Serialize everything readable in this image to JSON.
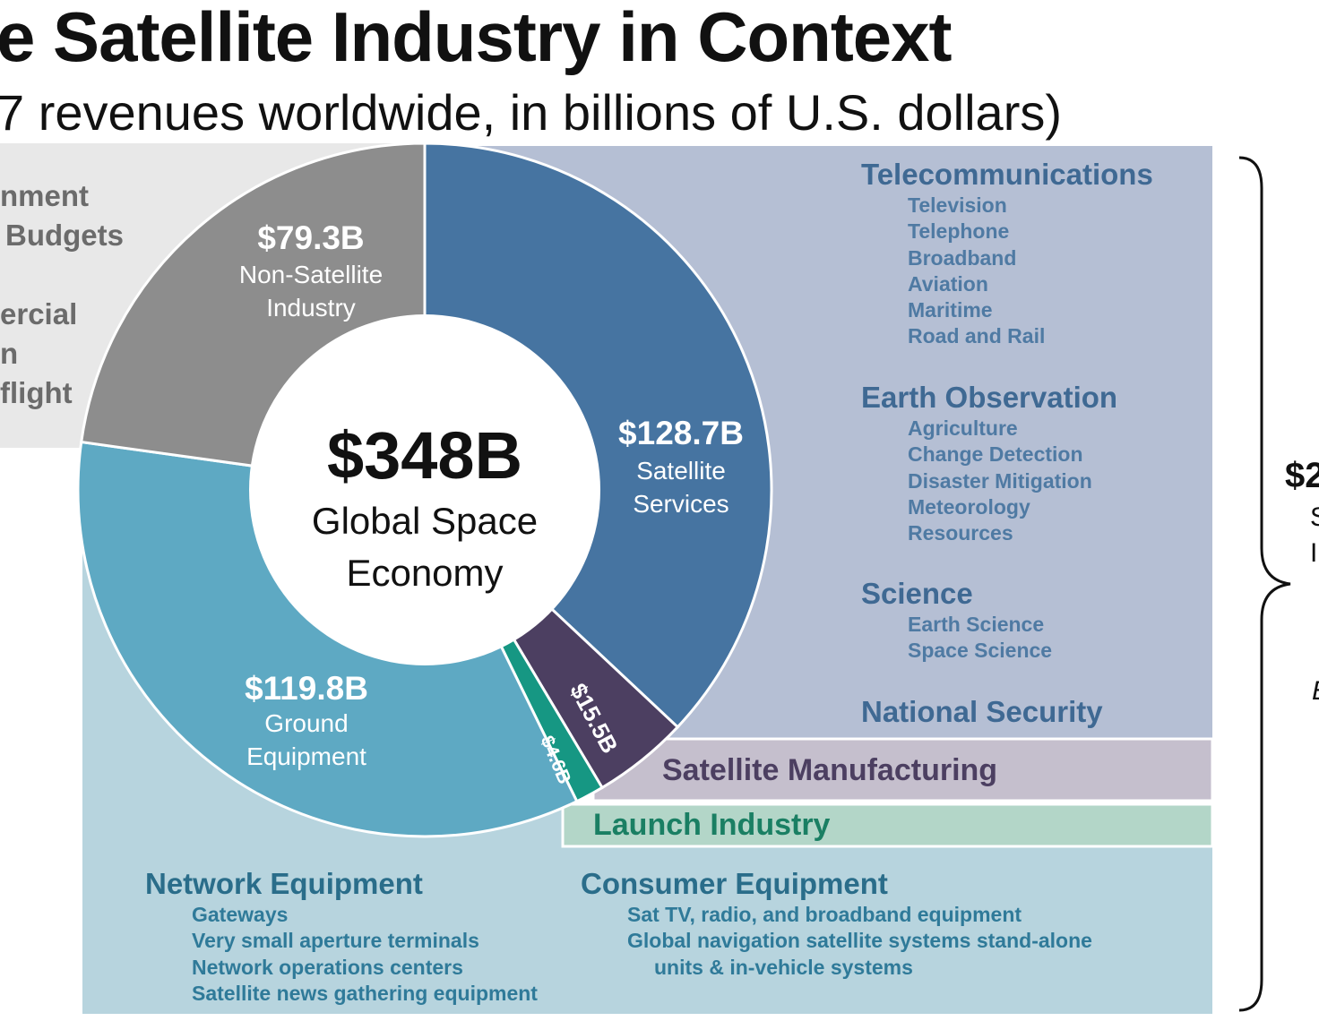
{
  "header": {
    "title": "e Satellite Industry in Context",
    "subtitle": "7 revenues worldwide, in billions of U.S. dollars)"
  },
  "government_labels": [
    "nment",
    "Budgets",
    "ercial",
    "n",
    "flight"
  ],
  "chart_data": {
    "type": "pie",
    "style": "donut",
    "center": {
      "value": "$348B",
      "label_lines": [
        "Global Space",
        "Economy"
      ]
    },
    "segments": [
      {
        "name": "Satellite Services",
        "value": 128.7,
        "value_label": "$128.7B",
        "label_lines": [
          "Satellite",
          "Services"
        ],
        "color": "#4674a1"
      },
      {
        "name": "Satellite Manufacturing",
        "value": 15.5,
        "value_label": "$15.5B",
        "label_lines": [],
        "color": "#4c3f61"
      },
      {
        "name": "Launch Industry",
        "value": 4.6,
        "value_label": "$4.6B",
        "label_lines": [],
        "color": "#169783"
      },
      {
        "name": "Ground Equipment",
        "value": 119.8,
        "value_label": "$119.8B",
        "label_lines": [
          "Ground",
          "Equipment"
        ],
        "color": "#5ea9c3"
      },
      {
        "name": "Non-Satellite Industry",
        "value": 79.3,
        "value_label": "$79.3B",
        "label_lines": [
          "Non-Satellite",
          "Industry"
        ],
        "color": "#8d8d8d"
      }
    ]
  },
  "services_panel": {
    "color": "#b5bfd4",
    "groups": [
      {
        "title": "Telecommunications",
        "items": [
          "Television",
          "Telephone",
          "Broadband",
          "Aviation",
          "Maritime",
          "Road and Rail"
        ]
      },
      {
        "title": "Earth Observation",
        "items": [
          "Agriculture",
          "Change Detection",
          "Disaster Mitigation",
          "Meteorology",
          "Resources"
        ]
      },
      {
        "title": "Science",
        "items": [
          "Earth Science",
          "Space Science"
        ]
      },
      {
        "title": "National Security",
        "items": []
      }
    ]
  },
  "manufacturing_band": {
    "label": "Satellite Manufacturing",
    "color": "#c5bfcd",
    "text_color": "#4c3f61"
  },
  "launch_band": {
    "label": "Launch Industry",
    "color": "#b3d6c8",
    "text_color": "#1a7f63"
  },
  "ground_panel": {
    "color": "#b7d4de",
    "groups": [
      {
        "title": "Network Equipment",
        "items": [
          "Gateways",
          "Very small aperture terminals",
          "Network operations centers",
          "Satellite news gathering equipment"
        ]
      },
      {
        "title": "Consumer Equipment",
        "items": [
          "Sat TV, radio, and broadband equipment",
          "Global navigation satellite systems stand-alone",
          "units & in-vehicle systems"
        ]
      }
    ]
  },
  "brace": {
    "value": "$2",
    "label_lines": [
      "S",
      "I"
    ],
    "extra": "E"
  }
}
